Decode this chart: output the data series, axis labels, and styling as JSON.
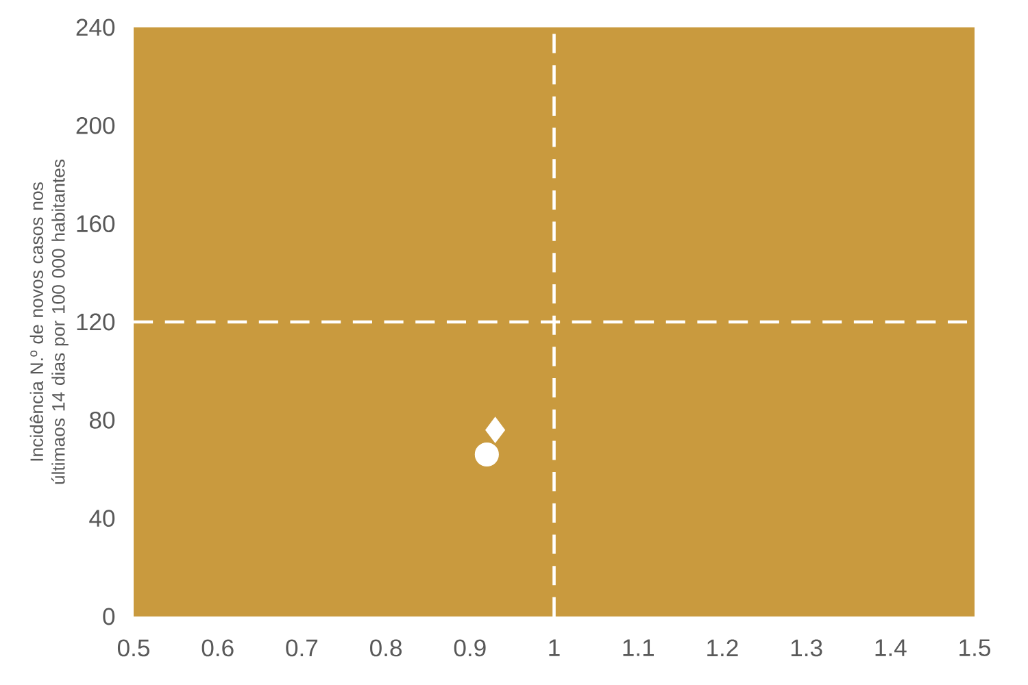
{
  "chart_data": {
    "type": "scatter",
    "ylabel": "Incidência N.º de novos casos nos últimaos 14 dias por 100 000 habitantes",
    "xlim": [
      0.5,
      1.5
    ],
    "xticks": [
      0.5,
      0.6,
      0.7,
      0.8,
      0.9,
      1,
      1.1,
      1.2,
      1.3,
      1.4,
      1.5
    ],
    "ylim": [
      0,
      240
    ],
    "yticks": [
      0,
      40,
      80,
      120,
      160,
      200,
      240
    ],
    "grid": false,
    "series": [
      {
        "color": "#ffffff",
        "marker": "circle",
        "x": [
          0.92
        ],
        "values": [
          66
        ]
      },
      {
        "color": "#ffffff",
        "marker": "diamond",
        "x": [
          0.93
        ],
        "values": [
          76
        ]
      }
    ],
    "ref_lines": [
      {
        "axis": "x",
        "value": 1,
        "color": "#ffffff",
        "line_style": "dashed"
      },
      {
        "axis": "y",
        "value": 120,
        "color": "#ffffff",
        "line_style": "dashed"
      }
    ]
  }
}
